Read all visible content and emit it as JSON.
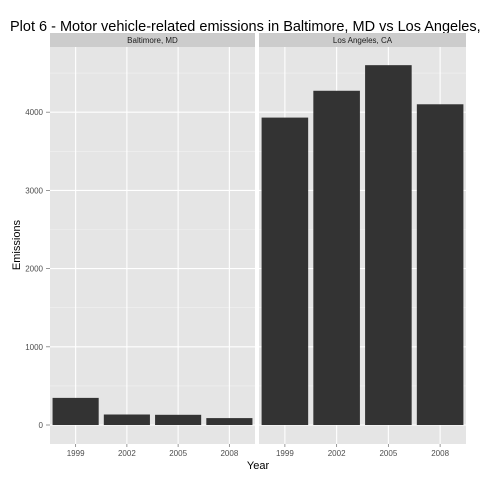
{
  "colors": {
    "panel_background": "#e5e5e5",
    "strip_background": "#cccccc",
    "grid_major": "#ffffff",
    "grid_minor": "#f2f2f2",
    "bar_fill": "#333333",
    "tick_text": "#4d4d4d"
  },
  "chart_data": {
    "type": "bar",
    "title": "Plot 6 - Motor vehicle-related emissions in Baltimore, MD vs Los Angeles,",
    "xlabel": "Year",
    "ylabel": "Emissions",
    "categories": [
      "1999",
      "2002",
      "2005",
      "2008"
    ],
    "ylim": [
      0,
      4700
    ],
    "yticks": [
      0,
      1000,
      2000,
      3000,
      4000
    ],
    "grid": true,
    "facets": [
      {
        "name": "Baltimore, MD",
        "values": [
          346.8,
          134.3,
          130.4,
          88.3
        ]
      },
      {
        "name": "Los Angeles, CA",
        "values": [
          3931.1,
          4274.0,
          4601.4,
          4101.3
        ]
      }
    ]
  }
}
